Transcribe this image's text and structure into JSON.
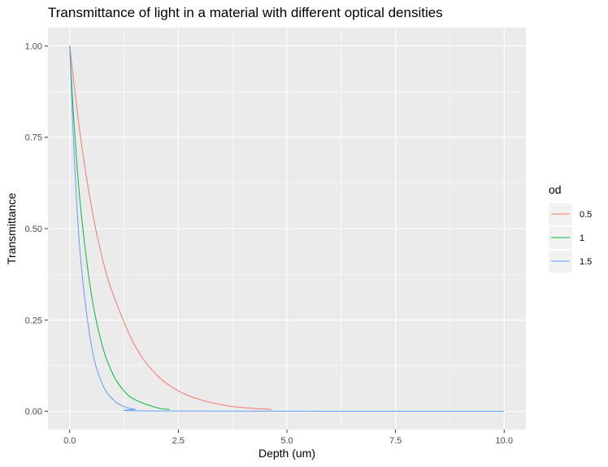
{
  "chart_data": {
    "type": "line",
    "title": "Transmittance of light in a material with different optical densities",
    "xlabel": "Depth (um)",
    "ylabel": "Transmittance",
    "xlim": [
      -0.5,
      10.5
    ],
    "ylim": [
      -0.05,
      1.05
    ],
    "x_ticks": [
      0,
      2.5,
      5,
      7.5,
      10
    ],
    "x_tick_labels": [
      "0.0",
      "2.5",
      "5.0",
      "7.5",
      "10.0"
    ],
    "y_ticks": [
      0,
      0.25,
      0.5,
      0.75,
      1
    ],
    "y_tick_labels": [
      "0.00",
      "0.25",
      "0.50",
      "0.75",
      "1.00"
    ],
    "grid": true,
    "legend": {
      "title": "od",
      "placement": "right"
    },
    "series": [
      {
        "name": "0.5",
        "color": "#F8766D",
        "x": [
          0,
          0.25,
          0.5,
          0.75,
          1,
          1.5,
          2,
          2.5,
          3,
          3.5,
          4,
          4.65
        ],
        "values": [
          1,
          0.75,
          0.56,
          0.42,
          0.32,
          0.18,
          0.1,
          0.056,
          0.032,
          0.018,
          0.01,
          0.005
        ]
      },
      {
        "name": "1",
        "color": "#00BA38",
        "x": [
          0,
          0.1,
          0.25,
          0.5,
          0.75,
          1,
          1.25,
          1.5,
          2,
          2.3
        ],
        "values": [
          1,
          0.79,
          0.56,
          0.32,
          0.18,
          0.1,
          0.056,
          0.032,
          0.01,
          0.005
        ]
      },
      {
        "name": "1.5",
        "color": "#619CFF",
        "x": [
          0,
          0.1,
          0.25,
          0.5,
          0.75,
          1,
          1.25,
          1.5,
          2,
          10
        ],
        "values": [
          1,
          0.71,
          0.42,
          0.18,
          0.075,
          0.032,
          0.013,
          0.0056,
          0.001,
          0
        ]
      }
    ]
  }
}
